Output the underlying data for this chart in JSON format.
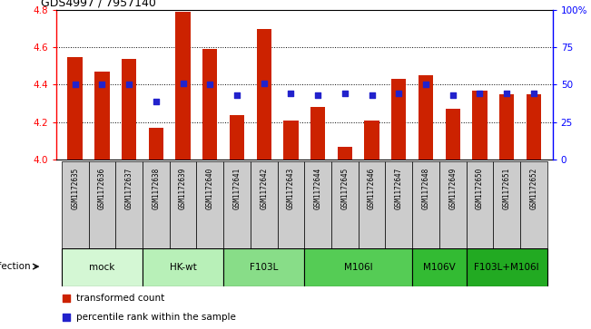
{
  "title": "GDS4997 / 7957140",
  "samples": [
    "GSM1172635",
    "GSM1172636",
    "GSM1172637",
    "GSM1172638",
    "GSM1172639",
    "GSM1172640",
    "GSM1172641",
    "GSM1172642",
    "GSM1172643",
    "GSM1172644",
    "GSM1172645",
    "GSM1172646",
    "GSM1172647",
    "GSM1172648",
    "GSM1172649",
    "GSM1172650",
    "GSM1172651",
    "GSM1172652"
  ],
  "bar_values": [
    4.55,
    4.47,
    4.54,
    4.17,
    4.79,
    4.59,
    4.24,
    4.7,
    4.21,
    4.28,
    4.07,
    4.21,
    4.43,
    4.45,
    4.27,
    4.37,
    4.35,
    4.35
  ],
  "percentile_values": [
    50,
    50,
    50,
    39,
    51,
    50,
    43,
    51,
    44,
    43,
    44,
    43,
    44,
    50,
    43,
    44,
    44,
    44
  ],
  "groups": [
    {
      "label": "mock",
      "start": 0,
      "end": 3,
      "color": "#d4f7d4"
    },
    {
      "label": "HK-wt",
      "start": 3,
      "end": 6,
      "color": "#b8f0b8"
    },
    {
      "label": "F103L",
      "start": 6,
      "end": 9,
      "color": "#88dd88"
    },
    {
      "label": "M106I",
      "start": 9,
      "end": 13,
      "color": "#55cc55"
    },
    {
      "label": "M106V",
      "start": 13,
      "end": 15,
      "color": "#33bb33"
    },
    {
      "label": "F103L+M106I",
      "start": 15,
      "end": 18,
      "color": "#22aa22"
    }
  ],
  "ylim_left": [
    4.0,
    4.8
  ],
  "ylim_right": [
    0,
    100
  ],
  "yticks_left": [
    4.0,
    4.2,
    4.4,
    4.6,
    4.8
  ],
  "yticks_right": [
    0,
    25,
    50,
    75,
    100
  ],
  "ytick_labels_right": [
    "0",
    "25",
    "50",
    "75",
    "100%"
  ],
  "bar_color": "#cc2200",
  "percentile_color": "#2222cc",
  "bar_width": 0.55,
  "legend_items": [
    {
      "label": "transformed count",
      "color": "#cc2200"
    },
    {
      "label": "percentile rank within the sample",
      "color": "#2222cc"
    }
  ],
  "infection_label": "infection",
  "sample_box_color": "#cccccc",
  "grid_lines": [
    4.2,
    4.4,
    4.6
  ]
}
